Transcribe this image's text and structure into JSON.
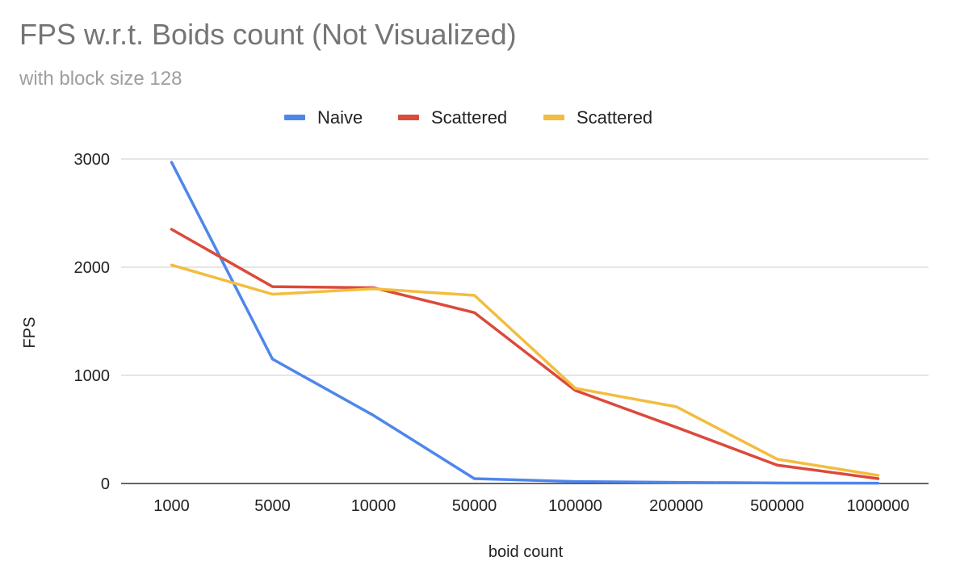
{
  "chart_data": {
    "type": "line",
    "title": "FPS w.r.t. Boids count (Not Visualized)",
    "subtitle": "with block size 128",
    "xlabel": "boid count",
    "ylabel": "FPS",
    "categories": [
      "1000",
      "5000",
      "10000",
      "50000",
      "100000",
      "200000",
      "500000",
      "1000000"
    ],
    "ylim": [
      0,
      3000
    ],
    "yticks": [
      0,
      1000,
      2000,
      3000
    ],
    "grid": true,
    "legend_position": "top",
    "series": [
      {
        "name": "Naive",
        "color": "#4f86ec",
        "values": [
          2970,
          1150,
          630,
          45,
          18,
          10,
          5,
          3
        ]
      },
      {
        "name": "Scattered",
        "color": "#db4a3b",
        "values": [
          2350,
          1820,
          1810,
          1580,
          860,
          520,
          170,
          45
        ]
      },
      {
        "name": "Scattered",
        "color": "#f2bd3f",
        "values": [
          2020,
          1750,
          1800,
          1740,
          880,
          710,
          225,
          75
        ]
      }
    ]
  }
}
